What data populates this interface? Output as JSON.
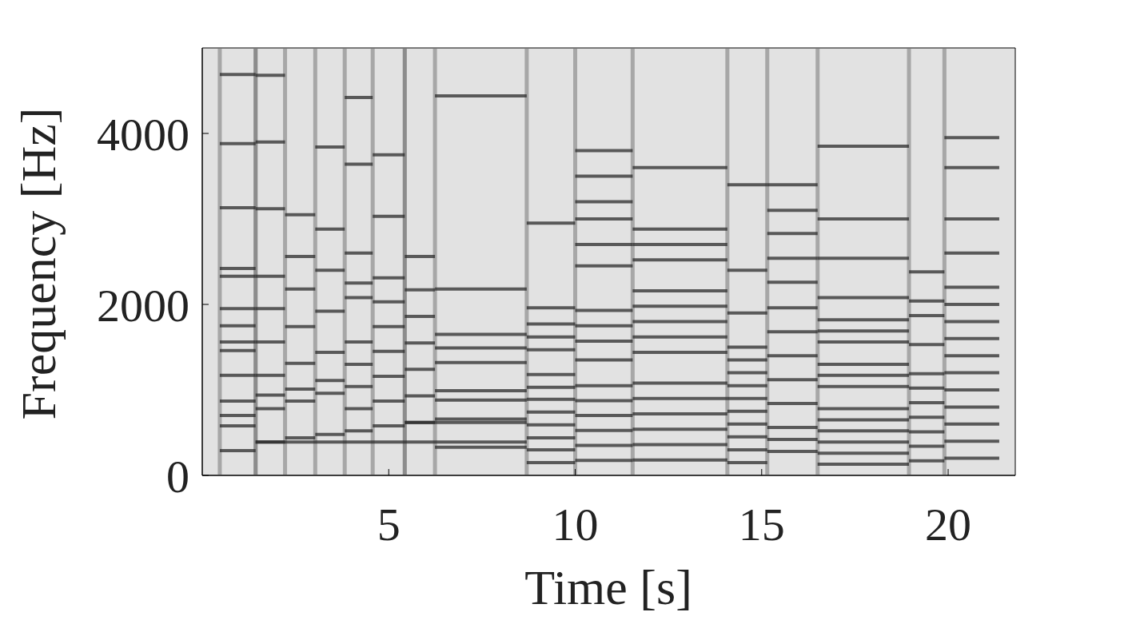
{
  "chart_data": {
    "type": "spectrogram",
    "x_label": "Time [s]",
    "y_label": "Frequency [Hz]",
    "xlim": [
      0,
      21.8
    ],
    "xticks": [
      5,
      10,
      15,
      20
    ],
    "ylim": [
      0,
      5000
    ],
    "yticks": [
      0,
      2000,
      4000
    ],
    "color": "#2b2b2b",
    "notes": [
      {
        "start": 0.47,
        "end": 1.43,
        "frequencies": [
          290,
          580,
          700,
          870,
          1170,
          1460,
          1560,
          1750,
          1950,
          2330,
          2420,
          3130,
          3880,
          4690
        ]
      },
      {
        "start": 1.43,
        "end": 2.22,
        "frequencies": [
          390,
          780,
          940,
          1170,
          1560,
          1950,
          2330,
          3120,
          3900,
          4680
        ]
      },
      {
        "start": 2.22,
        "end": 3.03,
        "frequencies": [
          440,
          870,
          1010,
          1310,
          1740,
          2180,
          2560,
          3050
        ]
      },
      {
        "start": 3.03,
        "end": 3.82,
        "frequencies": [
          480,
          960,
          1110,
          1440,
          1920,
          2400,
          2880,
          3840
        ]
      },
      {
        "start": 3.82,
        "end": 4.57,
        "frequencies": [
          520,
          780,
          1040,
          1300,
          1560,
          2080,
          2250,
          2600,
          3640,
          4420
        ]
      },
      {
        "start": 4.57,
        "end": 5.43,
        "frequencies": [
          580,
          870,
          1160,
          1450,
          1740,
          2030,
          2310,
          3030,
          3750
        ]
      },
      {
        "start": 5.43,
        "end": 6.24,
        "frequencies": [
          620,
          930,
          1240,
          1550,
          1860,
          2170,
          2560
        ]
      },
      {
        "start": 6.24,
        "end": 8.7,
        "frequencies": [
          330,
          660,
          880,
          990,
          1320,
          1490,
          1650,
          2180,
          4440
        ]
      },
      {
        "start": 1.43,
        "end": 8.7,
        "frequencies": [
          390
        ]
      },
      {
        "start": 5.43,
        "end": 8.7,
        "frequencies": [
          620
        ]
      },
      {
        "start": 8.7,
        "end": 10.0,
        "frequencies": [
          150,
          300,
          440,
          590,
          740,
          890,
          1030,
          1180,
          1470,
          1620,
          1770,
          1960,
          2950
        ]
      },
      {
        "start": 10.0,
        "end": 11.54,
        "frequencies": [
          175,
          350,
          525,
          700,
          875,
          1050,
          1350,
          1570,
          1750,
          1930,
          2450,
          2700,
          3000,
          3200,
          3500,
          3800
        ]
      },
      {
        "start": 11.54,
        "end": 14.08,
        "frequencies": [
          180,
          360,
          540,
          720,
          900,
          1080,
          1440,
          1620,
          1800,
          1980,
          2160,
          2520,
          2700,
          2880,
          3600
        ]
      },
      {
        "start": 14.08,
        "end": 15.15,
        "frequencies": [
          150,
          300,
          450,
          600,
          750,
          900,
          1050,
          1200,
          1350,
          1500,
          1900,
          2400,
          3400
        ]
      },
      {
        "start": 15.15,
        "end": 16.5,
        "frequencies": [
          280,
          420,
          560,
          840,
          1120,
          1400,
          1680,
          1960,
          2260,
          2540,
          2830,
          3100,
          3400
        ]
      },
      {
        "start": 16.5,
        "end": 18.95,
        "frequencies": [
          130,
          260,
          390,
          520,
          650,
          780,
          1040,
          1170,
          1300,
          1560,
          1690,
          1820,
          2080,
          2540,
          3000,
          3850
        ]
      },
      {
        "start": 18.95,
        "end": 19.9,
        "frequencies": [
          170,
          340,
          510,
          680,
          850,
          1020,
          1190,
          1530,
          1870,
          2040,
          2380
        ]
      },
      {
        "start": 19.9,
        "end": 21.37,
        "frequencies": [
          200,
          400,
          600,
          800,
          1000,
          1200,
          1400,
          1600,
          1800,
          2000,
          2200,
          2600,
          3000,
          3600,
          3950
        ]
      }
    ]
  }
}
